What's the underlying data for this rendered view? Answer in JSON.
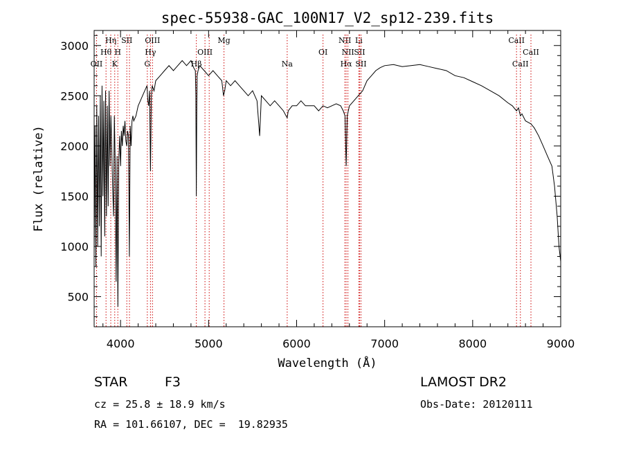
{
  "chart_data": {
    "type": "line",
    "title": "spec-55938-GAC_100N17_V2_sp12-239.fits",
    "xlabel": "Wavelength (Å)",
    "ylabel": "Flux (relative)",
    "xlim": [
      3700,
      9000
    ],
    "ylim": [
      200,
      3150
    ],
    "x_ticks": [
      4000,
      5000,
      6000,
      7000,
      8000,
      9000
    ],
    "y_ticks": [
      500,
      1000,
      1500,
      2000,
      2500,
      3000
    ],
    "grid": false,
    "line_color": "#000000",
    "marker_color": "#cc0000",
    "series": [
      {
        "x": [
          3700,
          3710,
          3720,
          3730,
          3740,
          3750,
          3760,
          3770,
          3780,
          3790,
          3800,
          3810,
          3820,
          3830,
          3840,
          3850,
          3860,
          3870,
          3880,
          3890,
          3900,
          3910,
          3920,
          3930,
          3940,
          3950,
          3960,
          3970,
          3980,
          3990,
          4000,
          4010,
          4020,
          4030,
          4040,
          4050,
          4060,
          4070,
          4080,
          4090,
          4100,
          4110,
          4120,
          4130,
          4140,
          4150,
          4175,
          4200,
          4225,
          4250,
          4275,
          4300,
          4310,
          4320,
          4330,
          4340,
          4350,
          4360,
          4380,
          4400,
          4450,
          4500,
          4550,
          4600,
          4650,
          4700,
          4750,
          4800,
          4830,
          4850,
          4855,
          4861,
          4866,
          4870,
          4880,
          4900,
          4950,
          5000,
          5050,
          5100,
          5150,
          5170,
          5183,
          5200,
          5250,
          5300,
          5350,
          5400,
          5450,
          5500,
          5550,
          5580,
          5600,
          5650,
          5700,
          5750,
          5800,
          5850,
          5880,
          5893,
          5905,
          5950,
          6000,
          6050,
          6100,
          6150,
          6200,
          6250,
          6300,
          6350,
          6400,
          6450,
          6500,
          6530,
          6550,
          6563,
          6575,
          6600,
          6650,
          6700,
          6750,
          6800,
          6850,
          6900,
          6950,
          7000,
          7100,
          7200,
          7300,
          7400,
          7500,
          7600,
          7700,
          7800,
          7900,
          8000,
          8100,
          8200,
          8300,
          8400,
          8450,
          8498,
          8520,
          8542,
          8560,
          8600,
          8662,
          8700,
          8750,
          8800,
          8850,
          8900,
          8930,
          8960,
          8980,
          9000
        ],
        "y": [
          900,
          2200,
          800,
          2400,
          1000,
          2300,
          1200,
          2500,
          900,
          2600,
          1500,
          2450,
          1100,
          2550,
          1300,
          2400,
          1400,
          2550,
          1800,
          2300,
          2000,
          1600,
          1300,
          2300,
          1800,
          650,
          1900,
          400,
          1850,
          2100,
          1800,
          2150,
          2000,
          2200,
          2100,
          2250,
          2050,
          2000,
          2150,
          2100,
          900,
          2200,
          2000,
          2250,
          2300,
          2250,
          2300,
          2400,
          2450,
          2500,
          2550,
          2600,
          2450,
          2400,
          2550,
          1750,
          2500,
          2600,
          2550,
          2650,
          2700,
          2750,
          2800,
          2750,
          2800,
          2850,
          2800,
          2850,
          2780,
          2750,
          2500,
          1500,
          2400,
          2700,
          2750,
          2800,
          2750,
          2700,
          2750,
          2700,
          2650,
          2500,
          2550,
          2650,
          2600,
          2650,
          2600,
          2550,
          2500,
          2550,
          2450,
          2100,
          2500,
          2450,
          2400,
          2450,
          2400,
          2350,
          2300,
          2280,
          2350,
          2400,
          2400,
          2450,
          2400,
          2400,
          2400,
          2350,
          2400,
          2380,
          2400,
          2420,
          2400,
          2350,
          2300,
          1800,
          2300,
          2400,
          2450,
          2500,
          2550,
          2650,
          2700,
          2750,
          2780,
          2800,
          2810,
          2790,
          2800,
          2810,
          2790,
          2770,
          2750,
          2700,
          2680,
          2640,
          2600,
          2550,
          2500,
          2430,
          2400,
          2350,
          2380,
          2300,
          2320,
          2250,
          2220,
          2180,
          2100,
          2000,
          1900,
          1800,
          1600,
          1300,
          1000,
          850
        ]
      }
    ],
    "line_markers": [
      {
        "wl": 3727,
        "label": "OII",
        "row": 3
      },
      {
        "wl": 3835,
        "label": "Hθ",
        "row": 2
      },
      {
        "wl": 3889,
        "label": "Hη",
        "row": 1
      },
      {
        "wl": 3934,
        "label": "K",
        "row": 3
      },
      {
        "wl": 3969,
        "label": "H",
        "row": 2
      },
      {
        "wl": 4071,
        "label": "SII",
        "row": 1
      },
      {
        "wl": 4101,
        "label": "",
        "row": 0
      },
      {
        "wl": 4304,
        "label": "G",
        "row": 3
      },
      {
        "wl": 4340,
        "label": "Hγ",
        "row": 2
      },
      {
        "wl": 4363,
        "label": "OIII",
        "row": 1
      },
      {
        "wl": 4861,
        "label": "Hβ",
        "row": 3
      },
      {
        "wl": 4959,
        "label": "OIII",
        "row": 2
      },
      {
        "wl": 5007,
        "label": "",
        "row": 0
      },
      {
        "wl": 5175,
        "label": "Mg",
        "row": 1
      },
      {
        "wl": 5893,
        "label": "Na",
        "row": 3
      },
      {
        "wl": 6300,
        "label": "OI",
        "row": 2
      },
      {
        "wl": 6548,
        "label": "NII",
        "row": 1
      },
      {
        "wl": 6563,
        "label": "Hα",
        "row": 3
      },
      {
        "wl": 6583,
        "label": "NII",
        "row": 2
      },
      {
        "wl": 6707,
        "label": "Li",
        "row": 1
      },
      {
        "wl": 6716,
        "label": "SII",
        "row": 2
      },
      {
        "wl": 6731,
        "label": "SII",
        "row": 3
      },
      {
        "wl": 8498,
        "label": "CaII",
        "row": 1
      },
      {
        "wl": 8542,
        "label": "CaII",
        "row": 3
      },
      {
        "wl": 8662,
        "label": "CaII",
        "row": 2
      }
    ]
  },
  "info": {
    "object_class": "STAR",
    "subclass": "F3",
    "cz": "cz = 25.8 ± 18.9 km/s",
    "radec": "RA = 101.66107, DEC =  19.82935",
    "survey": "LAMOST DR2",
    "obs_date": "Obs-Date: 20120111"
  }
}
